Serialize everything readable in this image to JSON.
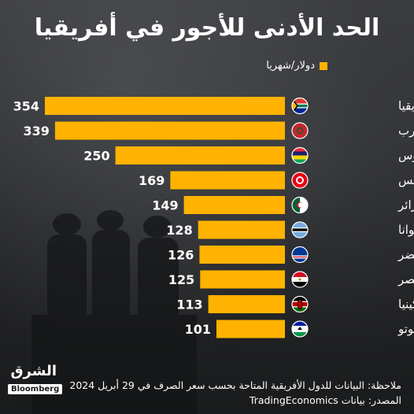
{
  "title": "الحد الأدنى للأجور في أفريقيا",
  "legend": {
    "label": "دولار/شهريا",
    "color": "#ffb300"
  },
  "chart_data": {
    "type": "bar",
    "orientation": "horizontal",
    "categories": [
      "جنوب أفريقيا",
      "المغرب",
      "موريشيوس",
      "تونس",
      "الجزائر",
      "بوتسوانا",
      "الرأس الأخضر",
      "مصر",
      "كينيا",
      "ليسوتو"
    ],
    "values": [
      354,
      339,
      250,
      169,
      149,
      128,
      126,
      125,
      113,
      101
    ],
    "flags": [
      "south-africa-flag-icon",
      "morocco-flag-icon",
      "mauritius-flag-icon",
      "tunisia-flag-icon",
      "algeria-flag-icon",
      "botswana-flag-icon",
      "cape-verde-flag-icon",
      "egypt-flag-icon",
      "kenya-flag-icon",
      "lesotho-flag-icon"
    ],
    "series_name": "دولار/شهريا",
    "bar_color": "#ffb300",
    "xlim": [
      0,
      354
    ],
    "grid": false
  },
  "footer": {
    "note": "ملاحظة: البيانات للدول الأفريقية المتاحة بحسب سعر الصرف في 29 أبريل 2024",
    "source": "المصدر: بيانات TradingEconomics"
  },
  "logo": {
    "top": "الشرق",
    "bottom": "Bloomberg"
  }
}
